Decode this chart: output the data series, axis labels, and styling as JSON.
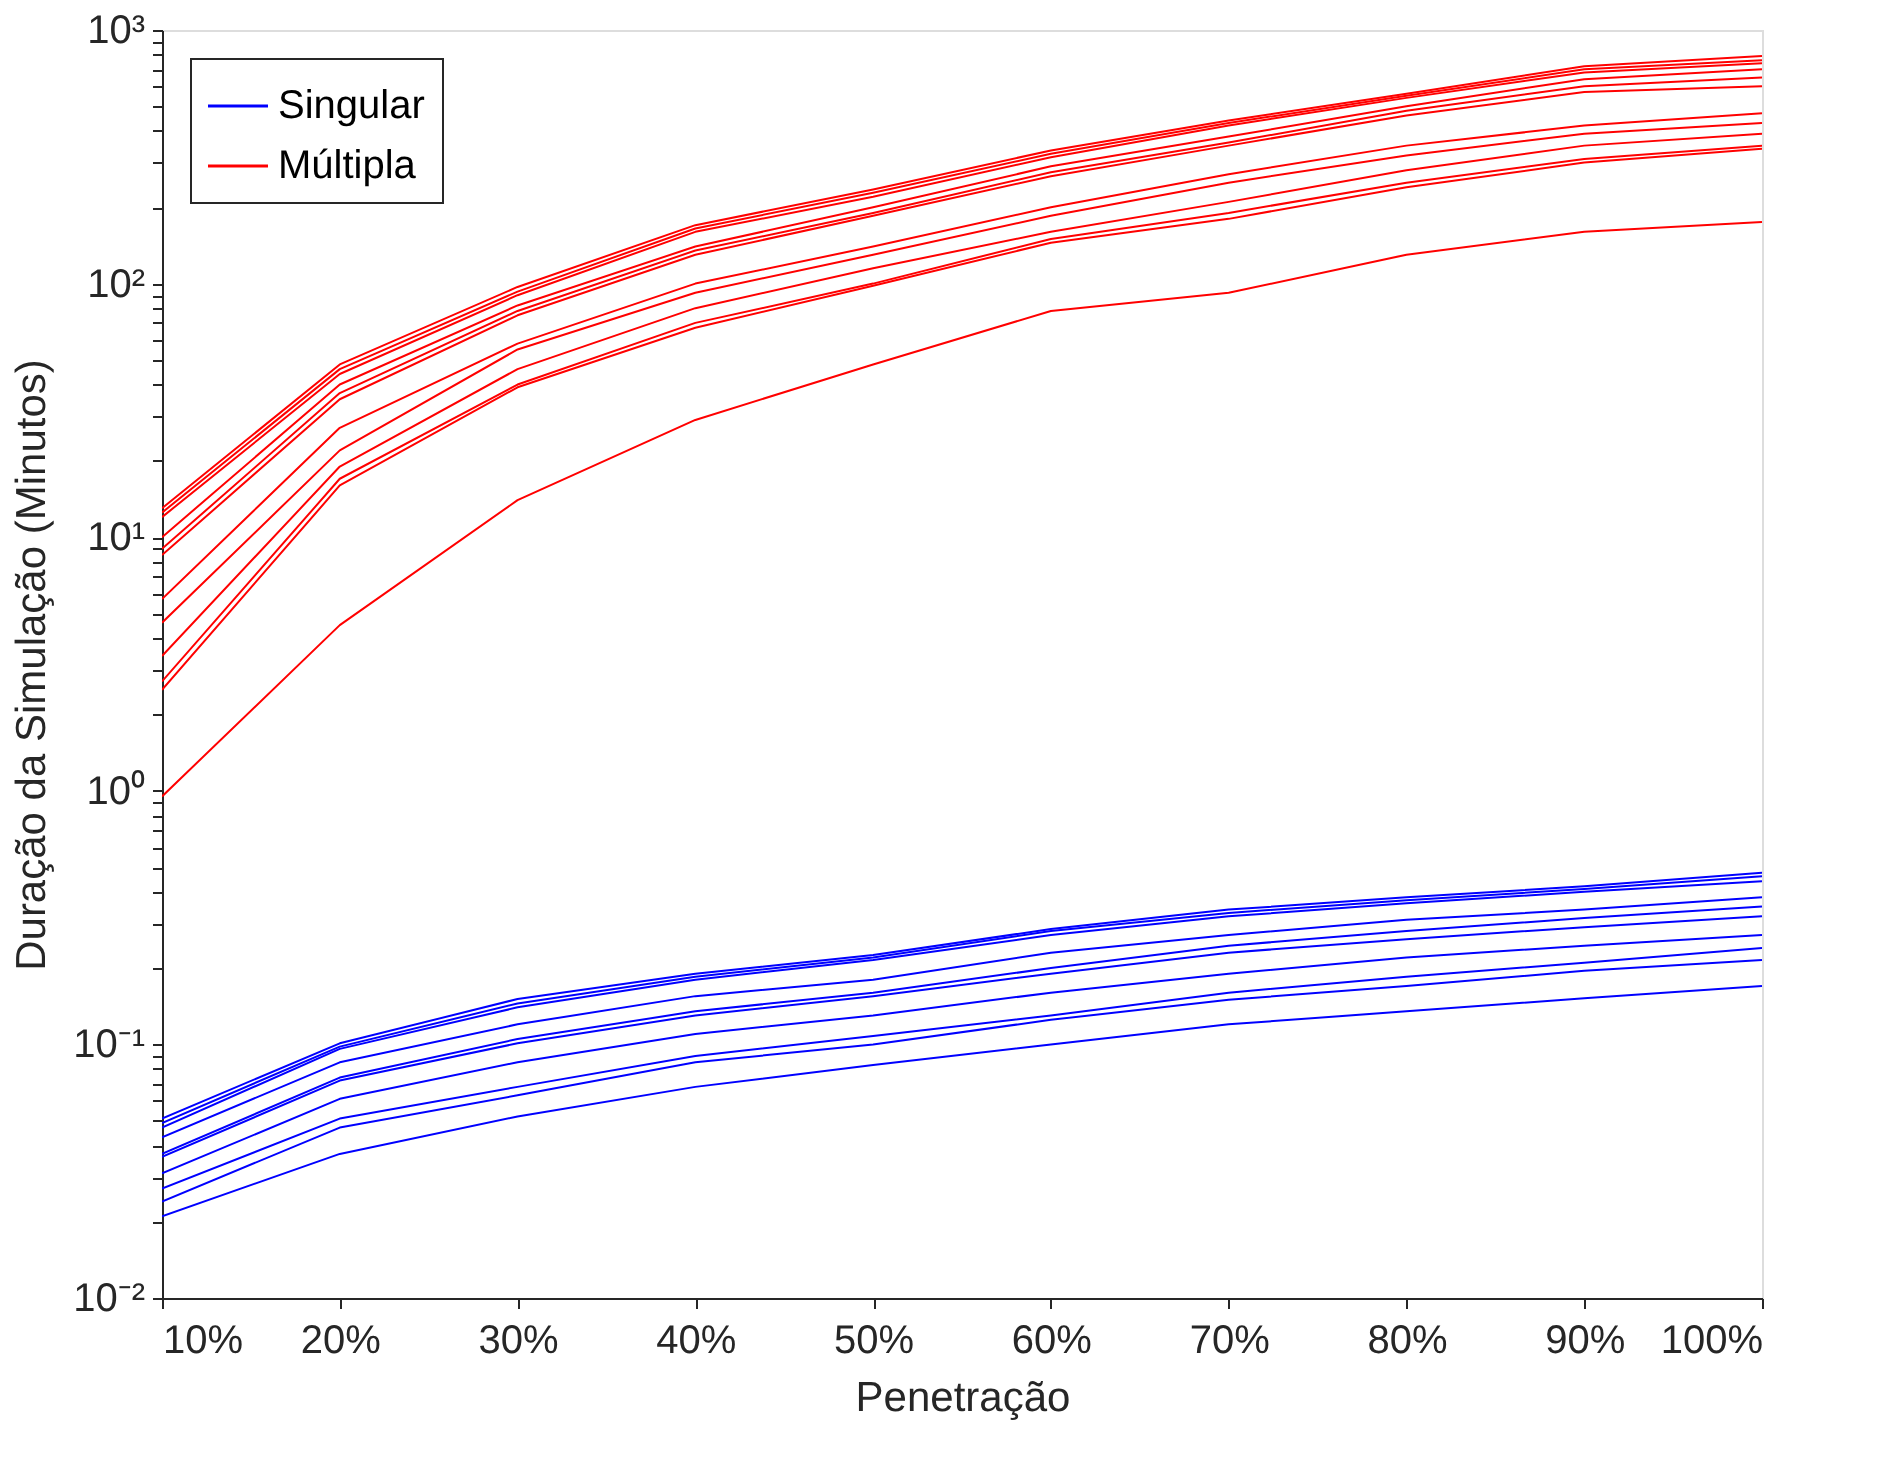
{
  "chart_data": {
    "type": "line",
    "xlabel": "Penetração",
    "ylabel": "Duração da Simulação (Minutos)",
    "x": [
      10,
      20,
      30,
      40,
      50,
      60,
      70,
      80,
      90,
      100
    ],
    "xlim": [
      10,
      100
    ],
    "xticks": [
      {
        "value": 10,
        "label": "10%"
      },
      {
        "value": 20,
        "label": "20%"
      },
      {
        "value": 30,
        "label": "30%"
      },
      {
        "value": 40,
        "label": "40%"
      },
      {
        "value": 50,
        "label": "50%"
      },
      {
        "value": 60,
        "label": "60%"
      },
      {
        "value": 70,
        "label": "70%"
      },
      {
        "value": 80,
        "label": "80%"
      },
      {
        "value": 90,
        "label": "90%"
      },
      {
        "value": 100,
        "label": "100%"
      }
    ],
    "log": true,
    "ylim": [
      0.01,
      1000
    ],
    "yticks": [
      {
        "value": 0.01,
        "label": "10⁻²"
      },
      {
        "value": 0.02,
        "label": null
      },
      {
        "value": 0.03,
        "label": null
      },
      {
        "value": 0.04,
        "label": null
      },
      {
        "value": 0.05,
        "label": null
      },
      {
        "value": 0.06,
        "label": null
      },
      {
        "value": 0.07,
        "label": null
      },
      {
        "value": 0.08,
        "label": null
      },
      {
        "value": 0.09,
        "label": null
      },
      {
        "value": 0.1,
        "label": "10⁻¹"
      },
      {
        "value": 0.2,
        "label": null
      },
      {
        "value": 0.3,
        "label": null
      },
      {
        "value": 0.4,
        "label": null
      },
      {
        "value": 0.5,
        "label": null
      },
      {
        "value": 0.6,
        "label": null
      },
      {
        "value": 0.7,
        "label": null
      },
      {
        "value": 0.8,
        "label": null
      },
      {
        "value": 0.9,
        "label": null
      },
      {
        "value": 1,
        "label": "10⁰"
      },
      {
        "value": 2,
        "label": null
      },
      {
        "value": 3,
        "label": null
      },
      {
        "value": 4,
        "label": null
      },
      {
        "value": 5,
        "label": null
      },
      {
        "value": 6,
        "label": null
      },
      {
        "value": 7,
        "label": null
      },
      {
        "value": 8,
        "label": null
      },
      {
        "value": 9,
        "label": null
      },
      {
        "value": 10,
        "label": "10¹"
      },
      {
        "value": 20,
        "label": null
      },
      {
        "value": 30,
        "label": null
      },
      {
        "value": 40,
        "label": null
      },
      {
        "value": 50,
        "label": null
      },
      {
        "value": 60,
        "label": null
      },
      {
        "value": 70,
        "label": null
      },
      {
        "value": 80,
        "label": null
      },
      {
        "value": 90,
        "label": null
      },
      {
        "value": 100,
        "label": "10²"
      },
      {
        "value": 200,
        "label": null
      },
      {
        "value": 300,
        "label": null
      },
      {
        "value": 400,
        "label": null
      },
      {
        "value": 500,
        "label": null
      },
      {
        "value": 600,
        "label": null
      },
      {
        "value": 700,
        "label": null
      },
      {
        "value": 800,
        "label": null
      },
      {
        "value": 900,
        "label": null
      },
      {
        "value": 1000,
        "label": "10³"
      }
    ],
    "grid": false,
    "legend": "top left",
    "marker": "none",
    "line_style": "solid",
    "series": [
      {
        "name": "Singular",
        "color": "#0000ff",
        "values": [
          0.051,
          0.101,
          0.151,
          0.19,
          0.225,
          0.285,
          0.34,
          0.38,
          0.42,
          0.475
        ]
      },
      {
        "color": "#0000ff",
        "values": [
          0.049,
          0.098,
          0.145,
          0.185,
          0.22,
          0.28,
          0.33,
          0.37,
          0.41,
          0.46
        ]
      },
      {
        "color": "#0000ff",
        "values": [
          0.047,
          0.096,
          0.14,
          0.18,
          0.215,
          0.27,
          0.32,
          0.36,
          0.4,
          0.44
        ]
      },
      {
        "color": "#0000ff",
        "values": [
          0.043,
          0.085,
          0.12,
          0.155,
          0.18,
          0.23,
          0.27,
          0.31,
          0.34,
          0.38
        ]
      },
      {
        "color": "#0000ff",
        "values": [
          0.037,
          0.074,
          0.105,
          0.135,
          0.16,
          0.2,
          0.245,
          0.28,
          0.315,
          0.35
        ]
      },
      {
        "color": "#0000ff",
        "values": [
          0.036,
          0.072,
          0.101,
          0.13,
          0.155,
          0.19,
          0.23,
          0.26,
          0.29,
          0.32
        ]
      },
      {
        "color": "#0000ff",
        "values": [
          0.031,
          0.061,
          0.085,
          0.11,
          0.13,
          0.16,
          0.19,
          0.22,
          0.245,
          0.27
        ]
      },
      {
        "color": "#0000ff",
        "values": [
          0.027,
          0.051,
          0.068,
          0.09,
          0.108,
          0.13,
          0.16,
          0.185,
          0.21,
          0.24
        ]
      },
      {
        "color": "#0000ff",
        "values": [
          0.024,
          0.047,
          0.063,
          0.085,
          0.1,
          0.125,
          0.15,
          0.17,
          0.195,
          0.215
        ]
      },
      {
        "color": "#0000ff",
        "values": [
          0.021,
          0.037,
          0.052,
          0.068,
          0.083,
          0.1,
          0.12,
          0.135,
          0.152,
          0.17
        ]
      },
      {
        "name": "Múltipla",
        "color": "#ff0000",
        "values": [
          13,
          48,
          97,
          170,
          235,
          335,
          440,
          560,
          720,
          790
        ]
      },
      {
        "color": "#ff0000",
        "values": [
          12.5,
          46,
          93,
          165,
          228,
          325,
          430,
          550,
          700,
          760
        ]
      },
      {
        "color": "#ff0000",
        "values": [
          12,
          44,
          90,
          160,
          220,
          315,
          420,
          540,
          680,
          740
        ]
      },
      {
        "color": "#ff0000",
        "values": [
          10,
          40,
          82,
          140,
          200,
          290,
          380,
          500,
          640,
          700
        ]
      },
      {
        "color": "#ff0000",
        "values": [
          9,
          37,
          78,
          135,
          190,
          275,
          360,
          480,
          600,
          650
        ]
      },
      {
        "color": "#ff0000",
        "values": [
          8.5,
          35,
          75,
          130,
          185,
          265,
          350,
          460,
          570,
          600
        ]
      },
      {
        "color": "#ff0000",
        "values": [
          5.7,
          27,
          58,
          100,
          140,
          200,
          270,
          350,
          420,
          470
        ]
      },
      {
        "color": "#ff0000",
        "values": [
          4.6,
          22,
          55,
          92,
          130,
          185,
          250,
          320,
          390,
          430
        ]
      },
      {
        "color": "#ff0000",
        "values": [
          3.4,
          19,
          46,
          80,
          115,
          160,
          210,
          280,
          350,
          390
        ]
      },
      {
        "color": "#ff0000",
        "values": [
          2.7,
          17,
          40,
          70,
          100,
          150,
          190,
          250,
          310,
          350
        ]
      },
      {
        "color": "#ff0000",
        "values": [
          2.5,
          16,
          39,
          67,
          98,
          145,
          180,
          240,
          300,
          340
        ]
      },
      {
        "color": "#ff0000",
        "values": [
          0.95,
          4.5,
          14,
          29,
          48,
          78,
          92,
          130,
          160,
          175
        ]
      }
    ]
  }
}
